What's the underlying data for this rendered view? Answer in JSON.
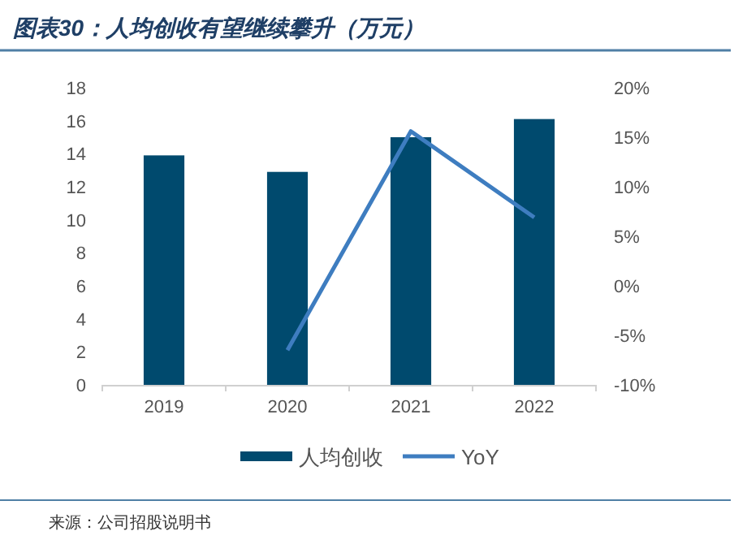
{
  "chart_data": {
    "type": "bar",
    "title": "图表30：人均创收有望继续攀升（万元）",
    "categories": [
      "2019",
      "2020",
      "2021",
      "2022"
    ],
    "series": [
      {
        "name": "人均创收",
        "color": "#004a6e",
        "values": [
          13.9,
          12.9,
          15.0,
          16.1
        ]
      },
      {
        "name": "YoY",
        "type": "line",
        "axis": "y2",
        "color": "#3e7dc0",
        "values": [
          null,
          -6.5,
          15.6,
          6.9
        ]
      }
    ],
    "ylim": [
      0,
      18
    ],
    "yticks": [
      0,
      2,
      4,
      6,
      8,
      10,
      12,
      14,
      16,
      18
    ],
    "y2lim": [
      -10,
      20
    ],
    "y2ticks": [
      {
        "value": -10,
        "label": "-10%"
      },
      {
        "value": -5,
        "label": "-5%"
      },
      {
        "value": 0,
        "label": "0%"
      },
      {
        "value": 5,
        "label": "5%"
      },
      {
        "value": 10,
        "label": "10%"
      },
      {
        "value": 15,
        "label": "15%"
      },
      {
        "value": 20,
        "label": "20%"
      }
    ],
    "grid": false,
    "legend": "bottom",
    "marker": "none",
    "line_style": "solid",
    "annotations": [
      "来源：公司招股说明书"
    ]
  }
}
